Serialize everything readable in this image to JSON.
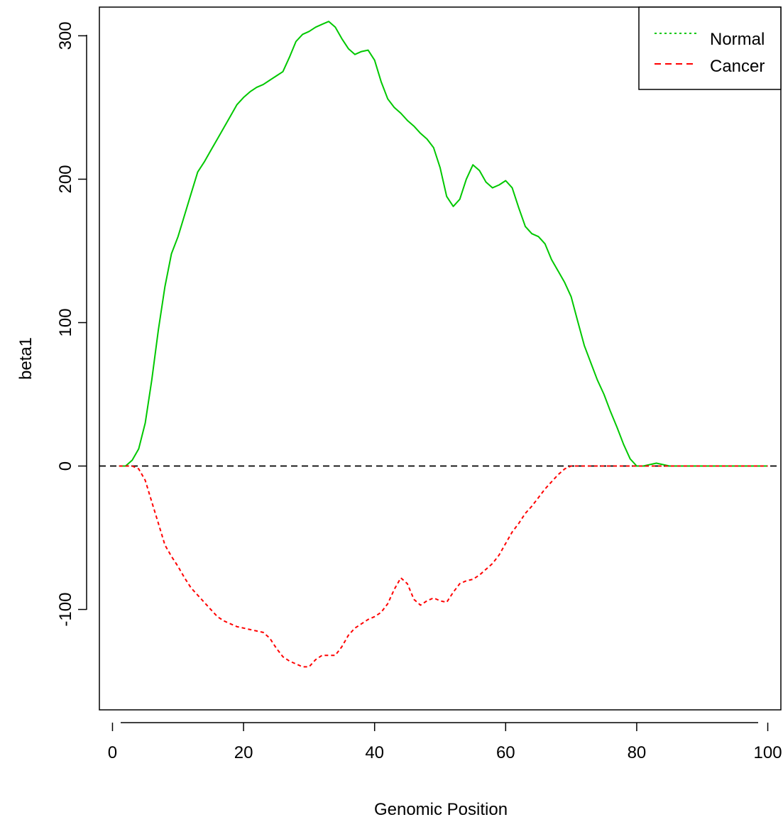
{
  "chart_data": {
    "type": "line",
    "title": "",
    "xlabel": "Genomic Position",
    "ylabel": "beta1",
    "xlim": [
      -2,
      102
    ],
    "ylim": [
      -170,
      320
    ],
    "x_ticks": [
      0,
      20,
      40,
      60,
      80,
      100
    ],
    "x_tick_labels": [
      "0",
      "20",
      "40",
      "60",
      "80",
      "100"
    ],
    "y_ticks": [
      -100,
      0,
      100,
      200,
      300
    ],
    "y_tick_labels": [
      "-100",
      "0",
      "100",
      "200",
      "300"
    ],
    "grid": false,
    "legend_position": "top-right",
    "reference_line": {
      "y": 0,
      "style": "dashed",
      "color": "#000000"
    },
    "series": [
      {
        "name": "Normal",
        "color": "#00c800",
        "legend_style": "dotted",
        "plot_style": "solid",
        "x": [
          1,
          2,
          3,
          4,
          5,
          6,
          7,
          8,
          9,
          10,
          11,
          12,
          13,
          14,
          15,
          16,
          17,
          18,
          19,
          20,
          21,
          22,
          23,
          24,
          25,
          26,
          27,
          28,
          29,
          30,
          31,
          32,
          33,
          34,
          35,
          36,
          37,
          38,
          39,
          40,
          41,
          42,
          43,
          44,
          45,
          46,
          47,
          48,
          49,
          50,
          51,
          52,
          53,
          54,
          55,
          56,
          57,
          58,
          59,
          60,
          61,
          62,
          63,
          64,
          65,
          66,
          67,
          68,
          69,
          70,
          71,
          72,
          73,
          74,
          75,
          76,
          77,
          78,
          79,
          80,
          81,
          82,
          83,
          84,
          85,
          86,
          87,
          88,
          89,
          90,
          91,
          92,
          93,
          94,
          95,
          96,
          97,
          98,
          99,
          100
        ],
        "values": [
          0,
          0,
          4,
          12,
          30,
          60,
          95,
          125,
          148,
          160,
          175,
          190,
          205,
          212,
          220,
          228,
          236,
          244,
          252,
          257,
          261,
          264,
          266,
          269,
          272,
          275,
          285,
          296,
          301,
          303,
          306,
          308,
          310,
          306,
          298,
          291,
          287,
          289,
          290,
          283,
          268,
          256,
          250,
          246,
          241,
          237,
          232,
          228,
          222,
          208,
          188,
          181,
          186,
          200,
          210,
          206,
          198,
          194,
          196,
          199,
          194,
          180,
          167,
          162,
          160,
          155,
          144,
          136,
          128,
          118,
          101,
          84,
          72,
          60,
          50,
          38,
          27,
          15,
          5,
          0,
          0,
          1,
          2,
          1,
          0,
          0,
          0,
          0,
          0,
          0,
          0,
          0,
          0,
          0,
          0,
          0,
          0,
          0,
          0,
          0
        ]
      },
      {
        "name": "Cancer",
        "color": "#ff0000",
        "legend_style": "dashed",
        "plot_style": "dashed",
        "x": [
          1,
          2,
          3,
          4,
          5,
          6,
          7,
          8,
          9,
          10,
          11,
          12,
          13,
          14,
          15,
          16,
          17,
          18,
          19,
          20,
          21,
          22,
          23,
          24,
          25,
          26,
          27,
          28,
          29,
          30,
          31,
          32,
          33,
          34,
          35,
          36,
          37,
          38,
          39,
          40,
          41,
          42,
          43,
          44,
          45,
          46,
          47,
          48,
          49,
          50,
          51,
          52,
          53,
          54,
          55,
          56,
          57,
          58,
          59,
          60,
          61,
          62,
          63,
          64,
          65,
          66,
          67,
          68,
          69,
          70,
          71,
          72,
          73,
          74,
          75,
          76,
          77,
          78,
          79,
          80,
          81,
          82,
          83,
          84,
          85,
          86,
          87,
          88,
          89,
          90,
          91,
          92,
          93,
          94,
          95,
          96,
          97,
          98,
          99,
          100
        ],
        "values": [
          0,
          0,
          0,
          -2,
          -10,
          -25,
          -40,
          -55,
          -63,
          -70,
          -78,
          -85,
          -90,
          -95,
          -100,
          -105,
          -108,
          -110,
          -112,
          -113,
          -114,
          -115,
          -116,
          -120,
          -127,
          -133,
          -136,
          -138,
          -140,
          -140,
          -135,
          -132,
          -132,
          -132,
          -126,
          -118,
          -113,
          -110,
          -107,
          -105,
          -102,
          -96,
          -86,
          -78,
          -82,
          -93,
          -97,
          -94,
          -92,
          -94,
          -95,
          -88,
          -82,
          -80,
          -79,
          -76,
          -72,
          -68,
          -62,
          -54,
          -46,
          -40,
          -33,
          -28,
          -22,
          -16,
          -11,
          -6,
          -2,
          0,
          0,
          0,
          0,
          0,
          0,
          0,
          0,
          0,
          0,
          0,
          0,
          0,
          0,
          0,
          0,
          0,
          0,
          0,
          0,
          0,
          0,
          0,
          0,
          0,
          0,
          0,
          0,
          0,
          0,
          0
        ]
      }
    ]
  }
}
